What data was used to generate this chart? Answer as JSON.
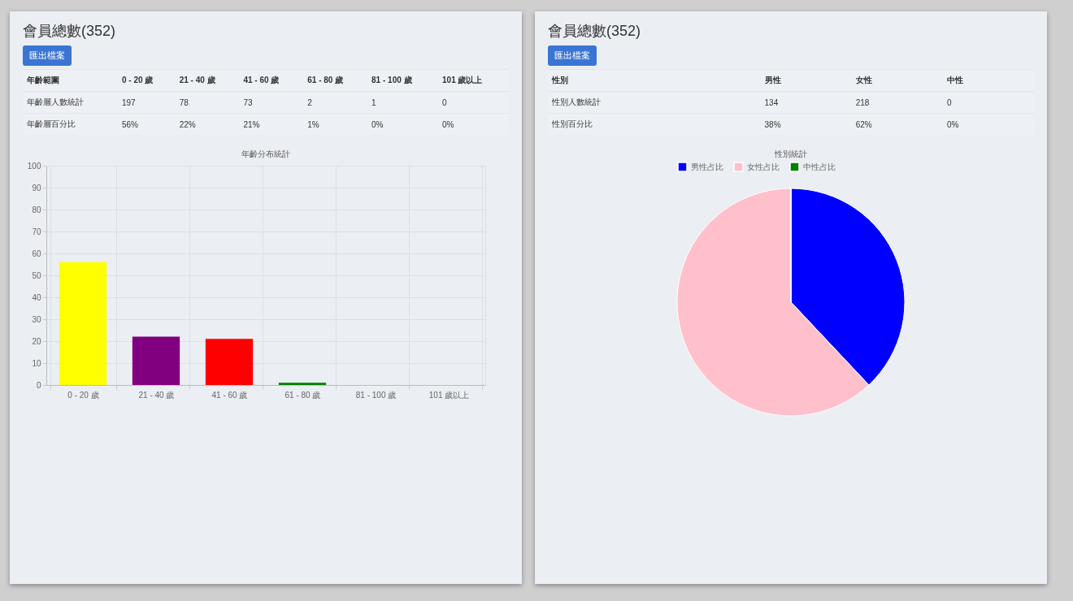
{
  "chart_data": [
    {
      "type": "bar",
      "title": "年齡分布統計",
      "categories": [
        "0 - 20 歲",
        "21 - 40 歲",
        "41 - 60 歲",
        "61 - 80 歲",
        "81 - 100 歲",
        "101 歲以上"
      ],
      "values": [
        56,
        22,
        21,
        1,
        0,
        0
      ],
      "colors": [
        "#ffff00",
        "#800080",
        "#ff0000",
        "#008000",
        "#0000ff",
        "#ffc0cb"
      ],
      "ylim": [
        0,
        100
      ],
      "yticks": [
        0,
        10,
        20,
        30,
        40,
        50,
        60,
        70,
        80,
        90,
        100
      ],
      "grid": true,
      "annotations": [
        "會員總數(352)",
        "匯出檔案",
        "年齡範圍",
        "年齡層人數統計",
        "年齡層百分比",
        "197",
        "78",
        "73",
        "2",
        "1",
        "0",
        "56%",
        "22%",
        "21%",
        "1%",
        "0%",
        "0%"
      ]
    },
    {
      "type": "pie",
      "title": "性別統計",
      "categories": [
        "男性占比",
        "女性占比",
        "中性占比"
      ],
      "values": [
        38,
        62,
        0
      ],
      "colors": [
        "#0000ff",
        "#ffc0cb",
        "#008000"
      ],
      "legend": "top",
      "annotations": [
        "會員總數(352)",
        "匯出檔案",
        "性別",
        "性別人數統計",
        "性別百分比",
        "男性",
        "女性",
        "中性",
        "134",
        "218",
        "0",
        "38%",
        "62%",
        "0%"
      ]
    }
  ]
}
